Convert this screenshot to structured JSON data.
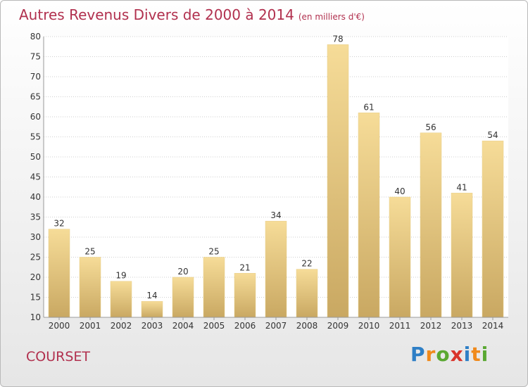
{
  "header": {
    "title": "Autres Revenus Divers de 2000 à 2014",
    "unit": "(en milliers d'€)"
  },
  "footer": {
    "commune": "COURSET",
    "logo": [
      "P",
      "r",
      "o",
      "x",
      "i",
      "t",
      "i"
    ]
  },
  "colors": {
    "bar_top": "#f6dc98",
    "bar_bottom": "#c9a862",
    "title": "#b1304e",
    "grid": "#cfcfcf"
  },
  "chart_data": {
    "type": "bar",
    "title": "Autres Revenus Divers de 2000 à 2014",
    "subtitle": "(en milliers d'€)",
    "xlabel": "",
    "ylabel": "",
    "categories": [
      "2000",
      "2001",
      "2002",
      "2003",
      "2004",
      "2005",
      "2006",
      "2007",
      "2008",
      "2009",
      "2010",
      "2011",
      "2012",
      "2013",
      "2014"
    ],
    "values": [
      32,
      25,
      19,
      14,
      20,
      25,
      21,
      34,
      22,
      78,
      61,
      40,
      56,
      41,
      54
    ],
    "ylim": [
      10,
      80
    ],
    "yticks": [
      10,
      15,
      20,
      25,
      30,
      35,
      40,
      45,
      50,
      55,
      60,
      65,
      70,
      75,
      80
    ],
    "grid": true,
    "data_labels": true
  }
}
